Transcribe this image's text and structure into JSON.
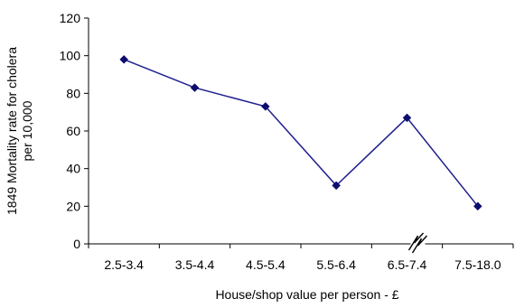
{
  "chart_data": {
    "type": "line",
    "categories": [
      "2.5-3.4",
      "3.5-4.4",
      "4.5-5.4",
      "5.5-6.4",
      "6.5-7.4",
      "7.5-18.0"
    ],
    "series": [
      {
        "values": [
          98,
          83,
          73,
          31,
          67,
          20
        ]
      }
    ],
    "xlabel": "House/shop value per person - £",
    "ylabel_lines": [
      "1849 Mortality rate for cholera",
      "per 10,000"
    ],
    "ylim": [
      0,
      120
    ],
    "yticks": [
      0,
      20,
      40,
      60,
      80,
      100,
      120
    ],
    "grid": false,
    "axis_break": "x-axis between 6.5-7.4 and 7.5-18.0",
    "colors": {
      "series": "#1f1f8f",
      "marker": "#0d0d6e",
      "axis": "#000000"
    }
  }
}
